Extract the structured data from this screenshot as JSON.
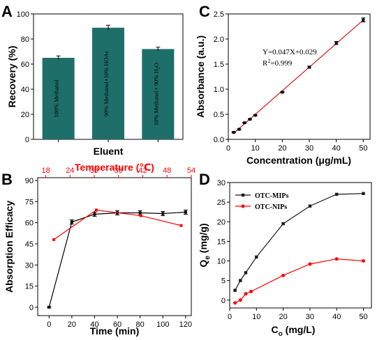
{
  "chart_data": [
    {
      "panel": "A",
      "type": "bar",
      "categories": [
        "100% Methanol",
        "90% Methanol+10%  HOAc",
        "10% Methanol+ 90% H2O"
      ],
      "values": [
        65,
        89,
        72
      ],
      "errors": [
        1.5,
        2,
        1.5
      ],
      "xlabel": "Eluent",
      "ylabel": "Recovery (%)",
      "ylim": [
        0,
        100
      ],
      "yticks": [
        "0",
        "20",
        "40",
        "60",
        "80",
        "100"
      ],
      "bar_color": "#1e6e6a"
    },
    {
      "panel": "B",
      "type": "line",
      "xlabel": "Time (min)",
      "ylabel": "Absorption Efficacy",
      "x2label": "Temperature (℃)",
      "xlim": [
        -10,
        125
      ],
      "ylim": [
        -6,
        92
      ],
      "x2lim": [
        16,
        54
      ],
      "xticks": [
        "0",
        "20",
        "40",
        "60",
        "80",
        "100",
        "120"
      ],
      "yticks": [
        "0",
        "15",
        "30",
        "45",
        "60",
        "75",
        "90"
      ],
      "x2ticks": [
        "18",
        "24",
        "30",
        "36",
        "42",
        "48",
        "54"
      ],
      "series": [
        {
          "axis": "bottom",
          "color": "#000000",
          "x": [
            0,
            20,
            40,
            60,
            80,
            100,
            120
          ],
          "y": [
            0,
            60.5,
            66,
            67,
            67,
            66.5,
            67.5
          ],
          "err": [
            0.5,
            1.5,
            1.5,
            1.5,
            1.5,
            1.5,
            1.5
          ]
        },
        {
          "axis": "top",
          "color": "#ff0000",
          "x": [
            20,
            30.5,
            41.5,
            51.5
          ],
          "y": [
            48,
            69,
            65,
            58
          ]
        }
      ]
    },
    {
      "panel": "C",
      "type": "scatter",
      "xlabel": "Concentration (μg/mL)",
      "ylabel": "Absorbance (a.u.)",
      "xlim": [
        0,
        52.5
      ],
      "ylim": [
        0,
        2.5
      ],
      "xticks": [
        "0",
        "10",
        "20",
        "30",
        "40",
        "50"
      ],
      "yticks": [
        "0.0",
        "0.5",
        "1.0",
        "1.5",
        "2.0",
        "2.5"
      ],
      "x": [
        2,
        4,
        6,
        8,
        10,
        20,
        30,
        40,
        50
      ],
      "y": [
        0.14,
        0.2,
        0.33,
        0.4,
        0.48,
        0.94,
        1.44,
        1.92,
        2.38
      ],
      "err": [
        0.01,
        0.01,
        0.01,
        0.01,
        0.01,
        0.01,
        0.02,
        0.03,
        0.04
      ],
      "fit": {
        "slope": 0.047,
        "intercept": 0.029,
        "x_range": [
          2,
          50
        ]
      },
      "equation": "Y=0.047X+0.029",
      "r2_prefix": "R",
      "r2_sup": "2",
      "r2_value": "=0.999",
      "line_color": "#e0252a"
    },
    {
      "panel": "D",
      "type": "line",
      "xlabel_main": "C",
      "xlabel_sub": "o",
      "xlabel_unit": " (mg/L)",
      "ylabel_main": "Q",
      "ylabel_sub": "e",
      "ylabel_unit": " (mg/g)",
      "xlim": [
        0,
        53
      ],
      "ylim": [
        -2,
        30
      ],
      "xticks": [
        "0",
        "10",
        "20",
        "30",
        "40",
        "50"
      ],
      "yticks": [
        "0",
        "5",
        "10",
        "15",
        "20",
        "25",
        "30"
      ],
      "legend_position": "top-left",
      "series": [
        {
          "name": "OTC-MIPs",
          "color": "#1a1a1a",
          "marker": "square",
          "x": [
            2,
            4,
            6,
            10,
            20,
            30,
            40,
            50
          ],
          "y": [
            2.5,
            5,
            7,
            11,
            19.5,
            24,
            27,
            27.2
          ]
        },
        {
          "name": "OTC-NIPs",
          "color": "#ff0000",
          "marker": "circle",
          "x": [
            2,
            4,
            6,
            8,
            20,
            30,
            40,
            50
          ],
          "y": [
            -0.7,
            0,
            1.6,
            2.2,
            6.3,
            9.2,
            10.5,
            10
          ]
        }
      ]
    }
  ],
  "labels": {
    "a": "A",
    "b": "B",
    "c": "C",
    "d": "D"
  }
}
